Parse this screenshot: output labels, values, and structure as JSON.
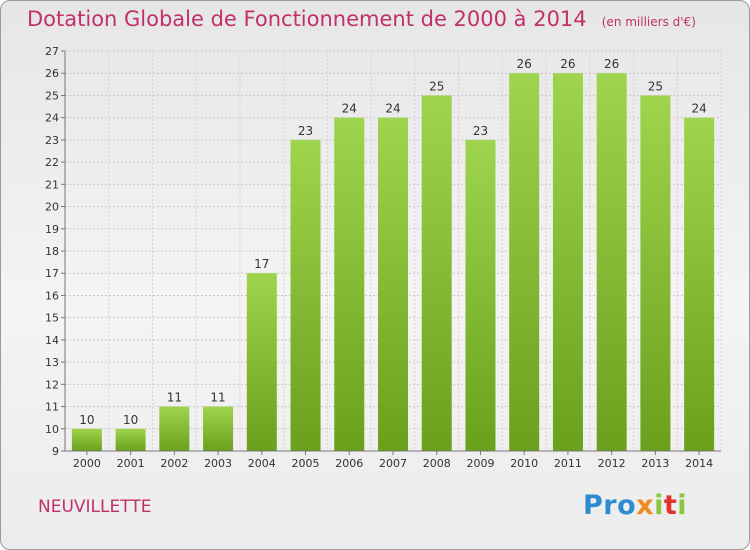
{
  "title": "Dotation Globale de Fonctionnement de 2000 à 2014",
  "unit_note": "(en milliers d'€)",
  "town": "NEUVILLETTE",
  "logo": {
    "text": "Proxiti"
  },
  "colors": {
    "bar_light": "#9fd44e",
    "bar_dark": "#6aa01c",
    "title": "#c0306a"
  },
  "chart_data": {
    "type": "bar",
    "categories": [
      "2000",
      "2001",
      "2002",
      "2003",
      "2004",
      "2005",
      "2006",
      "2007",
      "2008",
      "2009",
      "2010",
      "2011",
      "2012",
      "2013",
      "2014"
    ],
    "values": [
      10,
      10,
      11,
      11,
      17,
      23,
      24,
      24,
      25,
      23,
      26,
      26,
      26,
      25,
      24
    ],
    "ylim": [
      9,
      27
    ],
    "yticks": [
      9,
      10,
      11,
      12,
      13,
      14,
      15,
      16,
      17,
      18,
      19,
      20,
      21,
      22,
      23,
      24,
      25,
      26,
      27
    ],
    "grid": true,
    "data_labels": true
  }
}
